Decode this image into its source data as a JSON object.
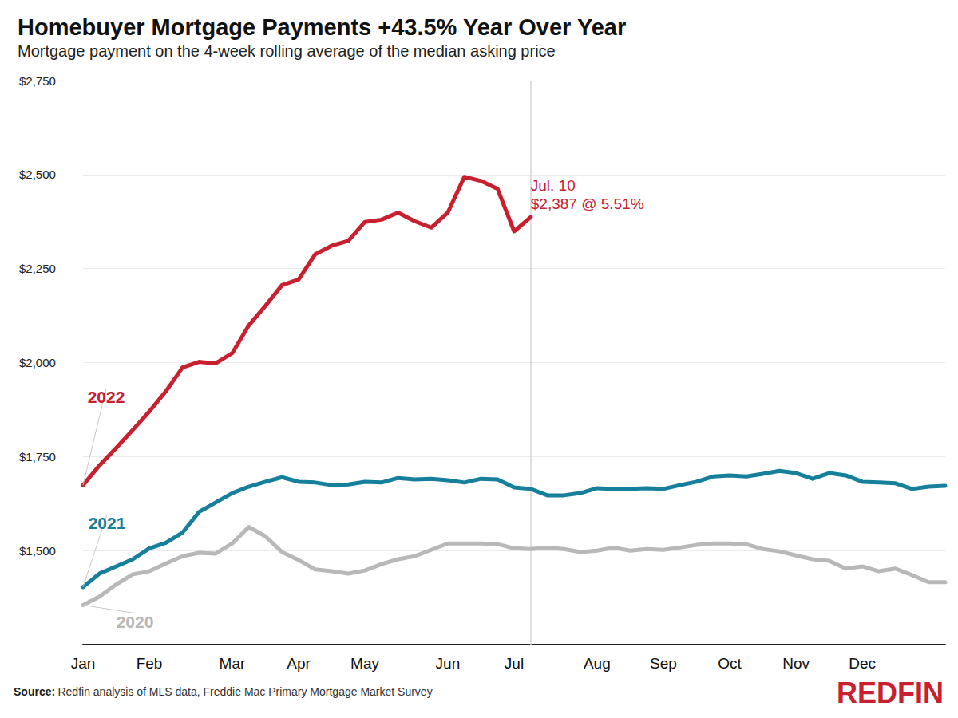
{
  "chart_data": {
    "type": "line",
    "title": "Homebuyer Mortgage Payments +43.5% Year Over Year",
    "subtitle": "Mortgage payment on the 4-week rolling average of the median asking price",
    "categories": [
      "Jan",
      null,
      null,
      null,
      "Feb",
      null,
      null,
      null,
      null,
      "Mar",
      null,
      null,
      null,
      "Apr",
      null,
      null,
      null,
      "May",
      null,
      null,
      null,
      null,
      "Jun",
      null,
      null,
      null,
      "Jul",
      null,
      null,
      null,
      null,
      "Aug",
      null,
      null,
      null,
      "Sep",
      null,
      null,
      null,
      "Oct",
      null,
      null,
      null,
      "Nov",
      null,
      null,
      null,
      "Dec",
      null,
      null,
      null,
      null,
      null
    ],
    "series": [
      {
        "name": "2022",
        "color": "#c8202f",
        "values": [
          1674,
          1727,
          1773,
          1821,
          1870,
          1924,
          1987,
          2002,
          1998,
          2025,
          2099,
          2151,
          2206,
          2221,
          2288,
          2311,
          2324,
          2374,
          2380,
          2399,
          2376,
          2359,
          2399,
          2494,
          2483,
          2462,
          2349,
          2387,
          null,
          null,
          null,
          null,
          null,
          null,
          null,
          null,
          null,
          null,
          null,
          null,
          null,
          null,
          null,
          null,
          null,
          null,
          null,
          null,
          null,
          null,
          null,
          null,
          null
        ]
      },
      {
        "name": "2021",
        "color": "#167f9b",
        "values": [
          1403,
          1439,
          1458,
          1477,
          1506,
          1521,
          1548,
          1603,
          1628,
          1653,
          1670,
          1683,
          1695,
          1683,
          1681,
          1674,
          1676,
          1683,
          1681,
          1693,
          1689,
          1691,
          1687,
          1681,
          1691,
          1689,
          1668,
          1664,
          1647,
          1647,
          1653,
          1666,
          1664,
          1664,
          1666,
          1664,
          1674,
          1683,
          1697,
          1700,
          1697,
          1704,
          1712,
          1706,
          1691,
          1706,
          1700,
          1683,
          1681,
          1679,
          1664,
          1670,
          1672
        ]
      },
      {
        "name": "2020",
        "color": "#b8b8b8",
        "values": [
          1355,
          1378,
          1410,
          1437,
          1445,
          1466,
          1485,
          1494,
          1492,
          1519,
          1563,
          1538,
          1496,
          1475,
          1450,
          1445,
          1439,
          1447,
          1464,
          1477,
          1485,
          1502,
          1519,
          1519,
          1519,
          1517,
          1506,
          1504,
          1508,
          1504,
          1496,
          1500,
          1508,
          1500,
          1504,
          1502,
          1508,
          1515,
          1519,
          1519,
          1517,
          1504,
          1498,
          1487,
          1477,
          1473,
          1452,
          1458,
          1445,
          1452,
          1435,
          1416,
          1416
        ]
      }
    ],
    "ylim": [
      1250,
      2750
    ],
    "yticks": [
      {
        "value": 1500,
        "label": "$1,500"
      },
      {
        "value": 1750,
        "label": "$1,750"
      },
      {
        "value": 2000,
        "label": "$2,000"
      },
      {
        "value": 2250,
        "label": "$2,250"
      },
      {
        "value": 2500,
        "label": "$2,500"
      },
      {
        "value": 2750,
        "label": "$2,750"
      }
    ],
    "grid": true,
    "annotation": {
      "series": "2022",
      "lines": [
        "Jul. 10",
        "$2,387 @ 5.51%"
      ]
    },
    "source": {
      "label": "Source:",
      "text": "Redfin analysis of MLS data, Freddie Mac Primary Mortgage Market Survey"
    },
    "logo": "REDFIN"
  }
}
